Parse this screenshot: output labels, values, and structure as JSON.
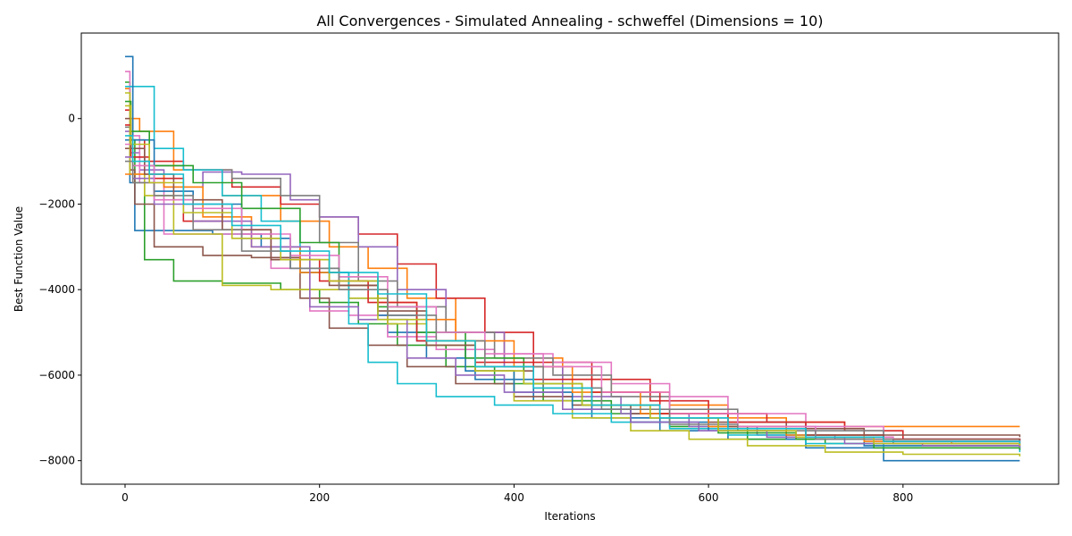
{
  "chart_data": {
    "type": "line",
    "title": "All Convergences - Simulated Annealing - schweffel (Dimensions = 10)",
    "xlabel": "Iterations",
    "ylabel": "Best Function Value",
    "xlim": [
      -45,
      960
    ],
    "ylim": [
      -8550,
      2000
    ],
    "xticks": [
      0,
      200,
      400,
      600,
      800
    ],
    "yticks": [
      -8000,
      -6000,
      -4000,
      -2000,
      0
    ],
    "ytick_labels": [
      "−8000",
      "−6000",
      "−4000",
      "−2000",
      "0"
    ],
    "grid": false,
    "legend": "none",
    "colors": [
      "#1f77b4",
      "#ff7f0e",
      "#2ca02c",
      "#d62728",
      "#9467bd",
      "#8c564b",
      "#e377c2",
      "#7f7f7f",
      "#bcbd22",
      "#17becf"
    ],
    "series": [
      {
        "color": "#1f77b4",
        "x": [
          0,
          5,
          10,
          40,
          90,
          140,
          180,
          230,
          270,
          310,
          360,
          420,
          480,
          550,
          620,
          700,
          780,
          920
        ],
        "y": [
          -500,
          -1500,
          -2620,
          -2620,
          -2700,
          -3000,
          -3600,
          -4200,
          -5000,
          -5600,
          -6100,
          -6600,
          -7000,
          -7300,
          -7500,
          -7700,
          -8000,
          -8000
        ]
      },
      {
        "color": "#ff7f0e",
        "x": [
          0,
          5,
          15,
          50,
          100,
          160,
          210,
          250,
          290,
          340,
          390,
          450,
          500,
          560,
          620,
          680,
          740,
          920
        ],
        "y": [
          700,
          0,
          -300,
          -1200,
          -1800,
          -2400,
          -3000,
          -3500,
          -4200,
          -5000,
          -5600,
          -6100,
          -6400,
          -6700,
          -7000,
          -7100,
          -7200,
          -7200
        ]
      },
      {
        "color": "#2ca02c",
        "x": [
          0,
          5,
          10,
          20,
          50,
          100,
          160,
          200,
          240,
          280,
          330,
          380,
          430,
          500,
          560,
          640,
          720,
          920
        ],
        "y": [
          850,
          -500,
          -1500,
          -3300,
          -3800,
          -3850,
          -4000,
          -4300,
          -4800,
          -5300,
          -5800,
          -6200,
          -6600,
          -6900,
          -7200,
          -7500,
          -7600,
          -7700
        ]
      },
      {
        "color": "#d62728",
        "x": [
          0,
          5,
          20,
          60,
          110,
          160,
          200,
          240,
          280,
          320,
          370,
          420,
          480,
          540,
          600,
          660,
          740,
          800,
          920
        ],
        "y": [
          200,
          -500,
          -1000,
          -1200,
          -1600,
          -2000,
          -2300,
          -2700,
          -3400,
          -4200,
          -5000,
          -5700,
          -6100,
          -6600,
          -6900,
          -7100,
          -7300,
          -7500,
          -7550
        ]
      },
      {
        "color": "#9467bd",
        "x": [
          0,
          5,
          15,
          40,
          80,
          120,
          170,
          200,
          240,
          280,
          330,
          390,
          450,
          510,
          580,
          650,
          730,
          920
        ],
        "y": [
          -300,
          -800,
          -1200,
          -1600,
          -1250,
          -1300,
          -1900,
          -2300,
          -3000,
          -4000,
          -5000,
          -5800,
          -6500,
          -6900,
          -7200,
          -7400,
          -7500,
          -7600
        ]
      },
      {
        "color": "#8c564b",
        "x": [
          0,
          5,
          10,
          30,
          80,
          130,
          180,
          210,
          250,
          290,
          340,
          400,
          460,
          520,
          600,
          680,
          760,
          920
        ],
        "y": [
          -700,
          -1200,
          -2000,
          -3000,
          -3200,
          -3250,
          -4200,
          -4900,
          -5300,
          -5800,
          -6200,
          -6500,
          -6700,
          -6900,
          -7100,
          -7250,
          -7400,
          -7450
        ]
      },
      {
        "color": "#e377c2",
        "x": [
          0,
          5,
          15,
          40,
          90,
          150,
          190,
          230,
          270,
          320,
          380,
          440,
          500,
          560,
          620,
          700,
          780,
          920
        ],
        "y": [
          1100,
          -400,
          -1500,
          -2700,
          -2700,
          -3500,
          -4500,
          -4600,
          -5100,
          -5400,
          -5500,
          -5700,
          -6200,
          -6500,
          -6900,
          -7200,
          -7500,
          -7700
        ]
      },
      {
        "color": "#7f7f7f",
        "x": [
          0,
          5,
          20,
          60,
          110,
          160,
          200,
          240,
          280,
          330,
          380,
          440,
          500,
          560,
          630,
          700,
          780,
          920
        ],
        "y": [
          -200,
          -900,
          -1100,
          -1200,
          -1400,
          -1800,
          -2900,
          -3800,
          -4400,
          -5000,
          -5600,
          -6000,
          -6500,
          -6800,
          -7100,
          -7300,
          -7550,
          -7650
        ]
      },
      {
        "color": "#bcbd22",
        "x": [
          0,
          5,
          20,
          50,
          100,
          150,
          190,
          230,
          270,
          310,
          360,
          400,
          460,
          520,
          580,
          640,
          720,
          800,
          920
        ],
        "y": [
          600,
          -1300,
          -1800,
          -2700,
          -3900,
          -4000,
          -4000,
          -4200,
          -4800,
          -5300,
          -5900,
          -6600,
          -7000,
          -7300,
          -7500,
          -7650,
          -7800,
          -7850,
          -7900
        ]
      },
      {
        "color": "#17becf",
        "x": [
          0,
          5,
          30,
          60,
          100,
          140,
          180,
          230,
          250,
          280,
          320,
          380,
          440,
          500,
          560,
          620,
          700,
          780,
          920
        ],
        "y": [
          750,
          750,
          -700,
          -1200,
          -1800,
          -2400,
          -3600,
          -4800,
          -5700,
          -6200,
          -6500,
          -6700,
          -6900,
          -7100,
          -7250,
          -7400,
          -7600,
          -7700,
          -7800
        ]
      },
      {
        "color": "#1f77b4",
        "x": [
          0,
          8,
          30,
          70,
          120,
          170,
          220,
          260,
          300,
          350,
          400,
          460,
          520,
          600,
          680,
          760,
          920
        ],
        "y": [
          1450,
          -500,
          -1700,
          -2000,
          -2800,
          -3500,
          -3900,
          -4600,
          -5200,
          -5900,
          -6400,
          -6800,
          -7100,
          -7300,
          -7500,
          -7650,
          -7700
        ]
      },
      {
        "color": "#ff7f0e",
        "x": [
          0,
          10,
          40,
          80,
          130,
          180,
          220,
          260,
          300,
          340,
          400,
          460,
          530,
          600,
          680,
          760,
          850,
          920
        ],
        "y": [
          -1300,
          -1300,
          -1600,
          -2300,
          -3000,
          -3600,
          -3900,
          -4300,
          -4700,
          -5200,
          -5800,
          -6400,
          -6900,
          -7200,
          -7400,
          -7550,
          -7600,
          -7650
        ]
      },
      {
        "color": "#2ca02c",
        "x": [
          0,
          6,
          25,
          70,
          120,
          180,
          220,
          260,
          300,
          350,
          410,
          470,
          540,
          610,
          690,
          770,
          920
        ],
        "y": [
          400,
          -300,
          -1100,
          -1500,
          -2100,
          -2900,
          -3700,
          -4400,
          -5000,
          -5600,
          -6200,
          -6700,
          -7000,
          -7350,
          -7500,
          -7700,
          -7750
        ]
      },
      {
        "color": "#d62728",
        "x": [
          0,
          6,
          25,
          60,
          100,
          150,
          200,
          250,
          300,
          360,
          420,
          480,
          550,
          620,
          700,
          780,
          920
        ],
        "y": [
          -150,
          -900,
          -1400,
          -2400,
          -2600,
          -3300,
          -3800,
          -4300,
          -5200,
          -5700,
          -6100,
          -6400,
          -6900,
          -7100,
          -7400,
          -7500,
          -7550
        ]
      },
      {
        "color": "#9467bd",
        "x": [
          0,
          8,
          30,
          70,
          130,
          190,
          240,
          290,
          340,
          390,
          450,
          520,
          590,
          660,
          740,
          820,
          920
        ],
        "y": [
          -900,
          -1400,
          -2000,
          -2400,
          -3000,
          -4400,
          -4700,
          -5600,
          -6000,
          -6400,
          -6800,
          -7100,
          -7300,
          -7450,
          -7600,
          -7650,
          -7700
        ]
      },
      {
        "color": "#8c564b",
        "x": [
          0,
          6,
          20,
          50,
          100,
          150,
          210,
          260,
          310,
          360,
          420,
          480,
          550,
          620,
          700,
          780,
          920
        ],
        "y": [
          0,
          -700,
          -1300,
          -1900,
          -2600,
          -3300,
          -3900,
          -4500,
          -5300,
          -5900,
          -6300,
          -6700,
          -7000,
          -7200,
          -7400,
          -7500,
          -7550
        ]
      },
      {
        "color": "#e377c2",
        "x": [
          0,
          8,
          30,
          70,
          120,
          170,
          220,
          270,
          320,
          370,
          430,
          490,
          560,
          630,
          710,
          790,
          920
        ],
        "y": [
          -600,
          -1100,
          -1900,
          -2100,
          -2700,
          -3200,
          -3700,
          -4400,
          -5000,
          -5500,
          -5800,
          -6400,
          -6900,
          -7200,
          -7450,
          -7550,
          -7600
        ]
      },
      {
        "color": "#7f7f7f",
        "x": [
          0,
          8,
          30,
          70,
          120,
          170,
          220,
          270,
          320,
          370,
          430,
          490,
          560,
          630,
          710,
          790,
          920
        ],
        "y": [
          -1000,
          -1500,
          -1800,
          -2600,
          -3100,
          -3500,
          -4000,
          -4600,
          -5200,
          -5800,
          -6300,
          -6800,
          -7150,
          -7300,
          -7500,
          -7600,
          -7650
        ]
      },
      {
        "color": "#bcbd22",
        "x": [
          0,
          6,
          25,
          60,
          110,
          160,
          210,
          260,
          310,
          360,
          410,
          470,
          540,
          610,
          690,
          770,
          920
        ],
        "y": [
          300,
          -600,
          -1500,
          -2200,
          -2800,
          -3300,
          -3800,
          -4700,
          -5200,
          -5900,
          -6200,
          -6700,
          -7000,
          -7300,
          -7450,
          -7600,
          -7650
        ]
      },
      {
        "color": "#17becf",
        "x": [
          0,
          8,
          25,
          60,
          110,
          160,
          210,
          260,
          310,
          360,
          420,
          480,
          550,
          620,
          700,
          780,
          920
        ],
        "y": [
          -400,
          -1000,
          -1300,
          -2000,
          -2500,
          -3100,
          -3600,
          -4100,
          -5200,
          -5800,
          -6300,
          -6700,
          -7000,
          -7250,
          -7450,
          -7550,
          -7600
        ]
      }
    ]
  }
}
